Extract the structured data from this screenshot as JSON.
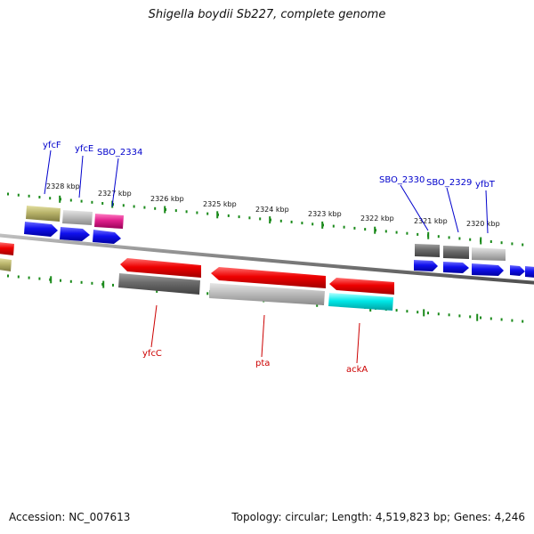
{
  "title": "Shigella boydii Sb227, complete genome",
  "footer": {
    "accession": "Accession: NC_007613",
    "topology": "Topology: circular; Length: 4,519,823 bp; Genes: 4,246"
  },
  "ticks": [
    {
      "label": "2328 kbp"
    },
    {
      "label": "2327 kbp"
    },
    {
      "label": "2326 kbp"
    },
    {
      "label": "2325 kbp"
    },
    {
      "label": "2324 kbp"
    },
    {
      "label": "2323 kbp"
    },
    {
      "label": "2322 kbp"
    },
    {
      "label": "2321 kbp"
    },
    {
      "label": "2320 kbp"
    }
  ],
  "genes_forward": [
    {
      "name": "yfcF",
      "color": "#0000cc"
    },
    {
      "name": "yfcE",
      "color": "#0000cc"
    },
    {
      "name": "SBO_2334",
      "color": "#0000cc"
    },
    {
      "name": "SBO_2330",
      "color": "#0000cc"
    },
    {
      "name": "SBO_2329",
      "color": "#0000cc"
    },
    {
      "name": "yfbT",
      "color": "#0000cc"
    }
  ],
  "genes_reverse": [
    {
      "name": "yfcC",
      "color": "#cc0000"
    },
    {
      "name": "pta",
      "color": "#cc0000"
    },
    {
      "name": "ackA",
      "color": "#cc0000"
    }
  ],
  "colors": {
    "backbone": "#808080",
    "tick_green": "#1a8a1a",
    "forward_cds": "#0000ee",
    "reverse_cds": "#ee0000",
    "olive": "#b8b36a",
    "magenta": "#e0208c",
    "cyan": "#00e0e0",
    "gray_dark": "#6a6a6a",
    "gray_light": "#bdbdbd"
  }
}
